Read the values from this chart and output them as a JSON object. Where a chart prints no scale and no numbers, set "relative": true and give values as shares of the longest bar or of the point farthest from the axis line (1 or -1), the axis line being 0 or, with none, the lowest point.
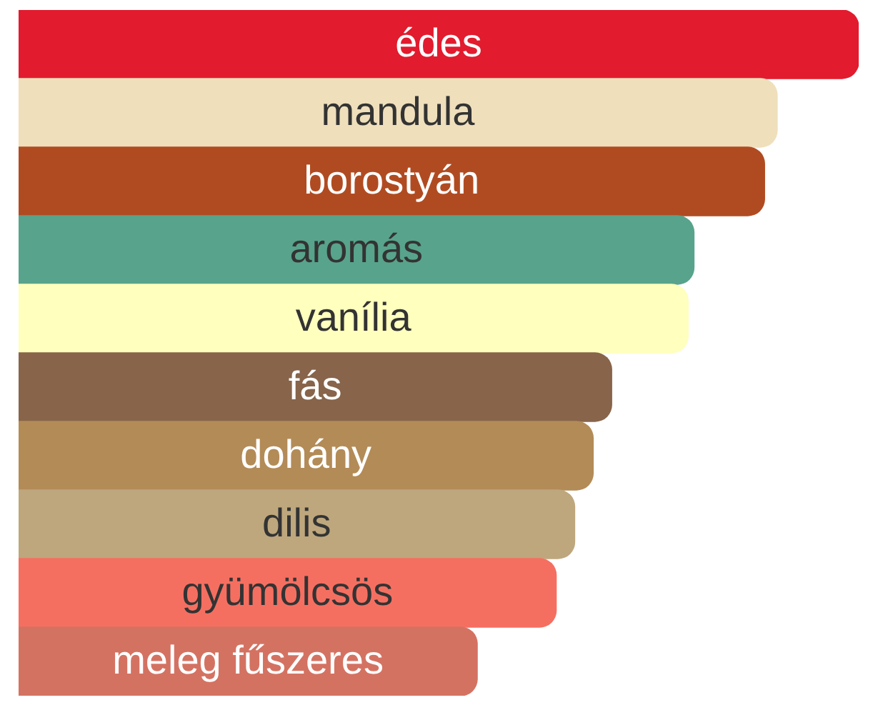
{
  "chart_data": {
    "type": "bar",
    "orientation": "horizontal",
    "relative": true,
    "categories": [
      "édes",
      "mandula",
      "borostyán",
      "aromás",
      "vanília",
      "fás",
      "dohány",
      "dilis",
      "gyümölcsös",
      "meleg fűszeres"
    ],
    "values": [
      1,
      0.903,
      0.888,
      0.804,
      0.797,
      0.706,
      0.684,
      0.662,
      0.64,
      0.546
    ],
    "colors": [
      "#e21b2e",
      "#efdfbb",
      "#b04b21",
      "#58a38b",
      "#ffffbe",
      "#87644a",
      "#b38b57",
      "#bea77d",
      "#f56f61",
      "#d47262"
    ]
  }
}
